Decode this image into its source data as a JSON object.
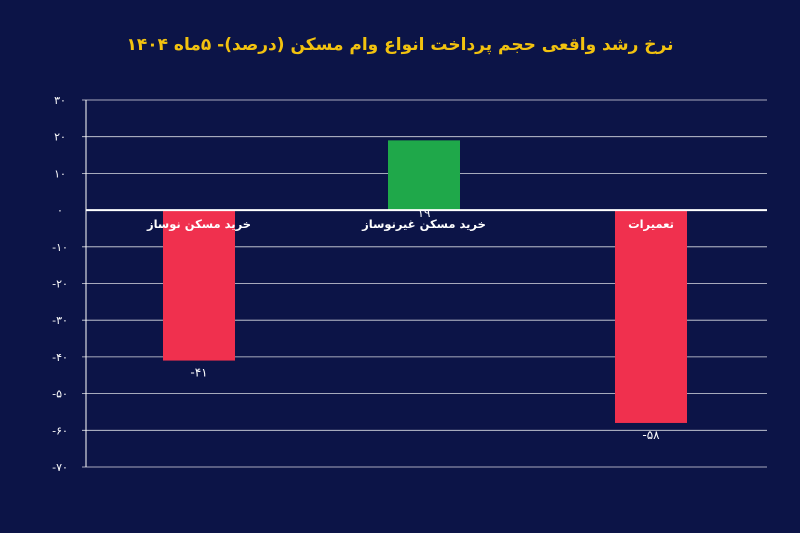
{
  "chart_data": {
    "type": "bar",
    "title": "نرخ رشد واقعی حجم پرداخت انواع وام مسکن (درصد)- ۵ماه ۱۴۰۴",
    "xlabel": "",
    "ylabel": "",
    "categories": [
      "خرید مسکن نوساز",
      "خرید مسکن غیرنوساز",
      "تعمیرات"
    ],
    "values": [
      -41,
      19,
      -58
    ],
    "value_labels": [
      "-۴۱",
      "۱۹",
      "-۵۸"
    ],
    "ylim": [
      -70,
      30
    ],
    "yticks": [
      30,
      20,
      10,
      0,
      -10,
      -20,
      -30,
      -40,
      -50,
      -60,
      -70
    ],
    "ytick_labels": [
      "۳۰",
      "۲۰",
      "۱۰",
      "۰",
      "-۱۰",
      "-۲۰",
      "-۳۰",
      "-۴۰",
      "-۵۰",
      "-۶۰",
      "-۷۰"
    ],
    "grid": true,
    "legend": "none",
    "colors": {
      "background": "#0c1447",
      "title": "#f2c20f",
      "positive": "#1fa84a",
      "negative": "#f0304e",
      "grid": "#ffffff",
      "text": "#ffffff"
    }
  }
}
